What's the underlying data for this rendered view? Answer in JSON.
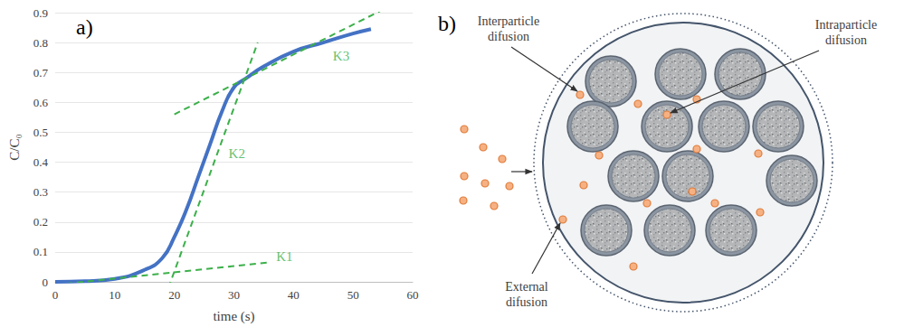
{
  "chart_data": {
    "type": "line",
    "panel_label": "a)",
    "xlabel": "time (s)",
    "ylabel": "C/C₀",
    "x": [
      0,
      5,
      10,
      15,
      18,
      20,
      22,
      24,
      26,
      28,
      30,
      32,
      35,
      40,
      45,
      50,
      53
    ],
    "values": [
      0,
      0.002,
      0.01,
      0.04,
      0.08,
      0.15,
      0.24,
      0.35,
      0.46,
      0.57,
      0.65,
      0.68,
      0.72,
      0.77,
      0.8,
      0.83,
      0.845
    ],
    "color": "#4472c4",
    "xlim": [
      0,
      60
    ],
    "xticks": [
      0,
      10,
      20,
      30,
      40,
      50,
      60
    ],
    "ylim": [
      0,
      0.9
    ],
    "yticks": [
      0,
      0.1,
      0.2,
      0.3,
      0.4,
      0.5,
      0.6,
      0.7,
      0.8,
      0.9
    ],
    "grid": true,
    "tangent_lines": [
      {
        "label": "K1",
        "x": [
          0,
          36
        ],
        "y": [
          -0.01,
          0.065
        ],
        "label_x": 38.5,
        "label_y": 0.085,
        "color": "#3cb04a",
        "line_style": "dashed"
      },
      {
        "label": "K2",
        "x": [
          19,
          34
        ],
        "y": [
          -0.02,
          0.8
        ],
        "label_x": 30.5,
        "label_y": 0.43,
        "color": "#3cb04a",
        "line_style": "dashed"
      },
      {
        "label": "K3",
        "x": [
          20,
          56
        ],
        "y": [
          0.56,
          0.92
        ],
        "label_x": 48,
        "label_y": 0.755,
        "color": "#3cb04a",
        "line_style": "dashed"
      }
    ]
  },
  "diagram": {
    "panel_label": "b)",
    "labels": {
      "interparticle": "Interparticle difusion",
      "intraparticle": "Intraparticle difusion",
      "external": "External difusion"
    }
  }
}
